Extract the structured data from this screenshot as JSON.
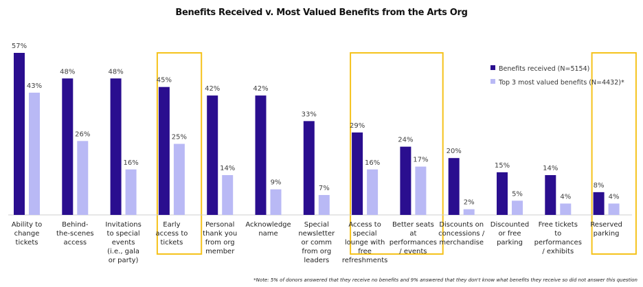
{
  "chart_data": {
    "type": "bar",
    "title": "Benefits Received v. Most Valued Benefits from the Arts Org",
    "xlabel": "",
    "ylabel": "",
    "ylim": [
      0,
      60
    ],
    "value_format": "percent",
    "grid": false,
    "legend_position": "top-right",
    "categories": [
      [
        "Ability to",
        "change",
        "tickets"
      ],
      [
        "Behind-",
        "the-scenes",
        "access"
      ],
      [
        "Invitations",
        "to special",
        "events",
        "(i.e., gala",
        "or party)"
      ],
      [
        "Early",
        "access to",
        "tickets"
      ],
      [
        "Personal",
        "thank you",
        "from org",
        "member"
      ],
      [
        "Acknowledge",
        "name"
      ],
      [
        "Special",
        "newsletter",
        "or comm",
        "from org",
        "leaders"
      ],
      [
        "Access to",
        "special",
        "lounge with",
        "free",
        "refreshments"
      ],
      [
        "Better seats",
        "at",
        "performances",
        "/ events"
      ],
      [
        "Discounts on",
        "concessions /",
        "merchandise"
      ],
      [
        "Discounted",
        "or free",
        "parking"
      ],
      [
        "Free tickets",
        "to",
        "performances",
        "/ exhibits"
      ],
      [
        "Reserved",
        "parking"
      ]
    ],
    "series": [
      {
        "name": "Benefits received (N=5154)",
        "color": "#2a0e8f",
        "values": [
          57,
          48,
          48,
          45,
          42,
          42,
          33,
          29,
          24,
          20,
          15,
          14,
          8
        ]
      },
      {
        "name": "Top 3 most valued benefits (N=4432)*",
        "color": "#b9b9f5",
        "values": [
          43,
          26,
          16,
          25,
          14,
          9,
          7,
          16,
          17,
          2,
          5,
          4,
          4
        ]
      }
    ],
    "highlight_groups": [
      [
        3,
        3
      ],
      [
        7,
        8
      ],
      [
        12,
        12
      ]
    ],
    "highlight_color": "#f5c21b",
    "footnote": "*Note: 5% of donors answered that they receive no benefits and 9% answered that they don't know what benefits they receive so did not answer this question"
  }
}
